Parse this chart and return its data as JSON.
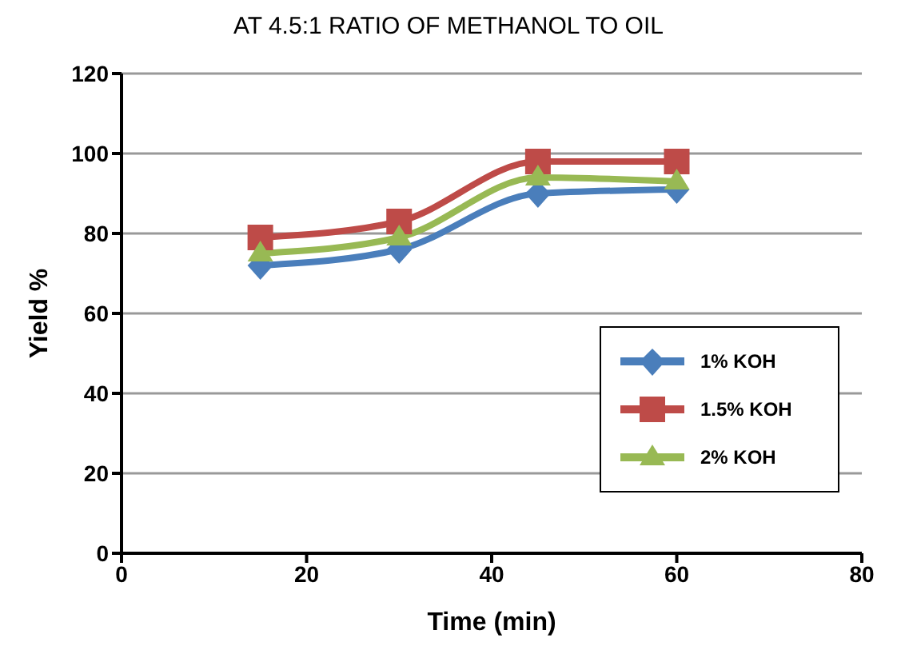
{
  "chart_data": {
    "type": "line",
    "title": "AT 4.5:1 RATIO OF METHANOL TO OIL",
    "xlabel": "Time (min)",
    "ylabel": "Yield %",
    "x": [
      15,
      30,
      45,
      60
    ],
    "series": [
      {
        "name": "1% KOH",
        "color": "#4a7ebb",
        "marker": "diamond",
        "values": [
          72,
          76,
          90,
          91
        ]
      },
      {
        "name": "1.5% KOH",
        "color": "#be4b48",
        "marker": "square",
        "values": [
          79,
          83,
          98,
          98
        ]
      },
      {
        "name": "2% KOH",
        "color": "#98b954",
        "marker": "triangle",
        "values": [
          75,
          79,
          94,
          93
        ]
      }
    ],
    "xlim": [
      0,
      80
    ],
    "xticks": [
      0,
      20,
      40,
      60,
      80
    ],
    "ylim": [
      0,
      120
    ],
    "yticks": [
      0,
      20,
      40,
      60,
      80,
      100,
      120
    ],
    "grid": "y",
    "legend": "bottom right",
    "line_style": "solid"
  }
}
